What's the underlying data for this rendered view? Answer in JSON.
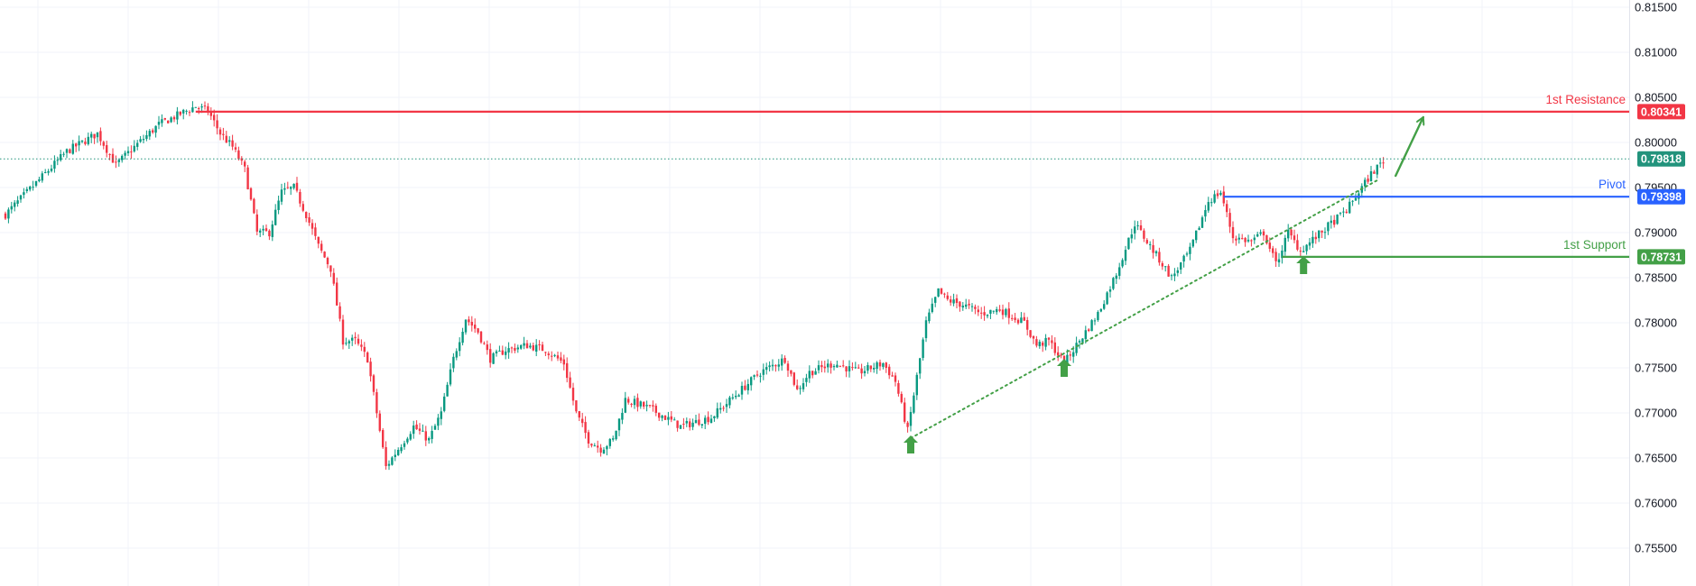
{
  "chart_data": {
    "type": "candlestick",
    "title": "",
    "xlabel": "",
    "ylabel": "",
    "ylim": [
      0.7508,
      0.8158
    ],
    "grid": true,
    "colors": {
      "up": "#089981",
      "down": "#f23645",
      "grid": "#f0f3fa"
    },
    "y_ticks": [
      "0.81500",
      "0.81000",
      "0.80500",
      "0.80000",
      "0.79500",
      "0.79000",
      "0.78500",
      "0.78000",
      "0.77500",
      "0.77000",
      "0.76500",
      "0.76000",
      "0.75500"
    ],
    "levels": [
      {
        "label": "1st Resistance",
        "value": 0.80341,
        "badge": "0.80341",
        "color": "#f23645"
      },
      {
        "label": "Pivot",
        "value": 0.79398,
        "badge": "0.79398",
        "color": "#2962ff"
      },
      {
        "label": "1st Support",
        "value": 0.78731,
        "badge": "0.78731",
        "color": "#43a047"
      }
    ],
    "last_price": {
      "value": 0.79818,
      "badge": "0.79818",
      "color": "#22937c"
    },
    "trendline": {
      "from": [
        295,
        0.7672
      ],
      "to": [
        447,
        0.7958
      ]
    },
    "bounce_markers": [
      {
        "x": 295,
        "y": 0.7665
      },
      {
        "x": 345,
        "y": 0.775
      },
      {
        "x": 423,
        "y": 0.7864
      }
    ],
    "projection_arrow": {
      "from": [
        453,
        0.7963
      ],
      "to": [
        462,
        0.8028
      ]
    },
    "path_keypoints": [
      [
        0,
        0.792
      ],
      [
        10,
        0.7955
      ],
      [
        20,
        0.799
      ],
      [
        30,
        0.801
      ],
      [
        36,
        0.7975
      ],
      [
        42,
        0.7995
      ],
      [
        50,
        0.802
      ],
      [
        56,
        0.803
      ],
      [
        62,
        0.804
      ],
      [
        66,
        0.8035
      ],
      [
        70,
        0.801
      ],
      [
        74,
        0.7995
      ],
      [
        78,
        0.797
      ],
      [
        82,
        0.79
      ],
      [
        86,
        0.79
      ],
      [
        90,
        0.7945
      ],
      [
        94,
        0.795
      ],
      [
        98,
        0.792
      ],
      [
        102,
        0.7885
      ],
      [
        106,
        0.786
      ],
      [
        110,
        0.778
      ],
      [
        114,
        0.778
      ],
      [
        118,
        0.776
      ],
      [
        121,
        0.77
      ],
      [
        124,
        0.764
      ],
      [
        128,
        0.766
      ],
      [
        133,
        0.7685
      ],
      [
        138,
        0.767
      ],
      [
        142,
        0.77
      ],
      [
        146,
        0.776
      ],
      [
        150,
        0.7805
      ],
      [
        154,
        0.779
      ],
      [
        158,
        0.776
      ],
      [
        163,
        0.777
      ],
      [
        170,
        0.7775
      ],
      [
        176,
        0.777
      ],
      [
        182,
        0.7755
      ],
      [
        186,
        0.77
      ],
      [
        190,
        0.767
      ],
      [
        194,
        0.766
      ],
      [
        198,
        0.767
      ],
      [
        202,
        0.7715
      ],
      [
        210,
        0.7705
      ],
      [
        220,
        0.7685
      ],
      [
        230,
        0.7695
      ],
      [
        238,
        0.772
      ],
      [
        246,
        0.7745
      ],
      [
        254,
        0.776
      ],
      [
        258,
        0.7725
      ],
      [
        262,
        0.7745
      ],
      [
        270,
        0.7755
      ],
      [
        278,
        0.7745
      ],
      [
        286,
        0.7755
      ],
      [
        290,
        0.7735
      ],
      [
        294,
        0.768
      ],
      [
        297,
        0.774
      ],
      [
        300,
        0.78
      ],
      [
        304,
        0.7835
      ],
      [
        307,
        0.7825
      ],
      [
        312,
        0.782
      ],
      [
        318,
        0.781
      ],
      [
        324,
        0.7815
      ],
      [
        332,
        0.78
      ],
      [
        336,
        0.7775
      ],
      [
        340,
        0.778
      ],
      [
        345,
        0.7755
      ],
      [
        350,
        0.778
      ],
      [
        356,
        0.781
      ],
      [
        362,
        0.7855
      ],
      [
        368,
        0.791
      ],
      [
        374,
        0.788
      ],
      [
        380,
        0.785
      ],
      [
        386,
        0.788
      ],
      [
        392,
        0.7935
      ],
      [
        396,
        0.7945
      ],
      [
        400,
        0.7895
      ],
      [
        406,
        0.789
      ],
      [
        410,
        0.79
      ],
      [
        414,
        0.7865
      ],
      [
        418,
        0.79
      ],
      [
        422,
        0.788
      ],
      [
        427,
        0.7895
      ],
      [
        432,
        0.791
      ],
      [
        437,
        0.7925
      ],
      [
        441,
        0.7945
      ],
      [
        445,
        0.7965
      ],
      [
        449,
        0.798
      ]
    ]
  }
}
